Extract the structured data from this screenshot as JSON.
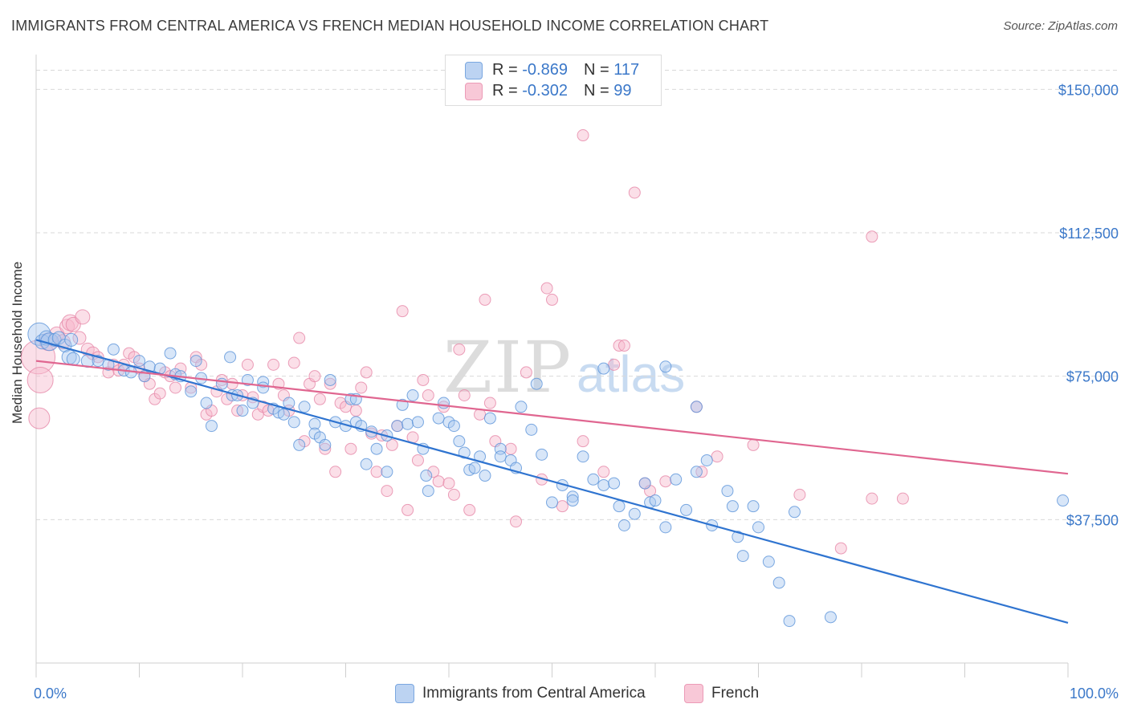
{
  "header": {
    "title": "IMMIGRANTS FROM CENTRAL AMERICA VS FRENCH MEDIAN HOUSEHOLD INCOME CORRELATION CHART",
    "source": "Source: ZipAtlas.com"
  },
  "legend": {
    "rows": [
      {
        "r_label": "R = ",
        "r_value": "-0.869",
        "n_label": "N = ",
        "n_value": "117"
      },
      {
        "r_label": "R = ",
        "r_value": "-0.302",
        "n_label": "N = ",
        "n_value": "99"
      }
    ]
  },
  "watermark": {
    "zip": "ZIP",
    "atlas": "atlas"
  },
  "colors": {
    "blue_fill": "#a9c8ef",
    "blue_stroke": "#5b93d9",
    "blue_line": "#2f74d0",
    "pink_fill": "#f6b8cb",
    "pink_stroke": "#e687a7",
    "pink_line": "#e06690",
    "tick_text": "#3b78c9",
    "grid": "#d9d9d9"
  },
  "chart_data": {
    "type": "scatter",
    "title": "IMMIGRANTS FROM CENTRAL AMERICA VS FRENCH MEDIAN HOUSEHOLD INCOME CORRELATION CHART",
    "xlabel": "",
    "ylabel": "Median Household Income",
    "xlim": [
      0,
      100
    ],
    "ylim": [
      0,
      157000
    ],
    "x_tick_labels": [
      "0.0%",
      "100.0%"
    ],
    "y_ticks": [
      37500,
      75000,
      112500,
      150000
    ],
    "y_tick_labels": [
      "$37,500",
      "$75,000",
      "$112,500",
      "$150,000"
    ],
    "grid": true,
    "legend_position": "top-center",
    "series": [
      {
        "name": "Immigrants from Central America",
        "stats": {
          "R": -0.869,
          "N": 117
        },
        "trend": {
          "x": [
            0,
            100
          ],
          "y": [
            84500,
            10500
          ]
        },
        "points": [
          [
            0.3,
            86000,
            14
          ],
          [
            0.6,
            84000,
            9
          ],
          [
            1,
            85000,
            9
          ],
          [
            1.3,
            84000,
            11
          ],
          [
            1.8,
            84500,
            8
          ],
          [
            2.2,
            85000,
            8
          ],
          [
            2.8,
            83000,
            8
          ],
          [
            3.4,
            84500,
            8
          ],
          [
            3.2,
            80000,
            9
          ],
          [
            3.6,
            79500,
            8
          ],
          [
            5,
            79000,
            8
          ],
          [
            6,
            79000,
            7
          ],
          [
            7,
            78000,
            7
          ],
          [
            7.5,
            82000,
            7
          ],
          [
            8.5,
            76500,
            7
          ],
          [
            9.2,
            76000,
            7
          ],
          [
            10,
            79000,
            7
          ],
          [
            10.5,
            75000,
            7
          ],
          [
            11,
            77500,
            7
          ],
          [
            12,
            77000,
            7
          ],
          [
            13,
            81000,
            7
          ],
          [
            13.5,
            75500,
            7
          ],
          [
            14,
            75000,
            7
          ],
          [
            15,
            71000,
            7
          ],
          [
            15.5,
            79000,
            7
          ],
          [
            16,
            74500,
            7
          ],
          [
            16.5,
            68000,
            7
          ],
          [
            17,
            62000,
            7
          ],
          [
            18,
            73000,
            7
          ],
          [
            19,
            70000,
            7
          ],
          [
            18.8,
            80000,
            7
          ],
          [
            19.5,
            70000,
            7
          ],
          [
            20,
            66000,
            7
          ],
          [
            20.5,
            74000,
            7
          ],
          [
            21,
            68000,
            7
          ],
          [
            22,
            73500,
            7
          ],
          [
            22,
            72000,
            7
          ],
          [
            23,
            66500,
            7
          ],
          [
            23.5,
            65500,
            7
          ],
          [
            24,
            65000,
            7
          ],
          [
            24.5,
            68000,
            7
          ],
          [
            25,
            63000,
            7
          ],
          [
            25.5,
            57000,
            7
          ],
          [
            26,
            67000,
            7
          ],
          [
            27,
            62500,
            7
          ],
          [
            27,
            60000,
            7
          ],
          [
            27.5,
            59000,
            7
          ],
          [
            28,
            57000,
            7
          ],
          [
            28.5,
            74000,
            7
          ],
          [
            29,
            63000,
            7
          ],
          [
            30,
            62000,
            7
          ],
          [
            30.5,
            69000,
            7
          ],
          [
            31,
            69000,
            7
          ],
          [
            31,
            63000,
            7
          ],
          [
            31.5,
            62000,
            7
          ],
          [
            32,
            52000,
            7
          ],
          [
            32.5,
            60500,
            7
          ],
          [
            33,
            56000,
            7
          ],
          [
            34,
            59500,
            7
          ],
          [
            34,
            50000,
            7
          ],
          [
            35,
            62000,
            7
          ],
          [
            35.5,
            67500,
            7
          ],
          [
            36,
            62500,
            7
          ],
          [
            36.5,
            70000,
            7
          ],
          [
            37,
            63000,
            7
          ],
          [
            37.5,
            56000,
            7
          ],
          [
            37.8,
            49000,
            7
          ],
          [
            38,
            45000,
            7
          ],
          [
            39,
            64000,
            7
          ],
          [
            39.5,
            68000,
            7
          ],
          [
            40,
            63000,
            7
          ],
          [
            40.5,
            62000,
            7
          ],
          [
            41,
            58000,
            7
          ],
          [
            41.5,
            55000,
            7
          ],
          [
            42,
            50500,
            7
          ],
          [
            42.5,
            51000,
            7
          ],
          [
            43,
            54000,
            7
          ],
          [
            43.5,
            49000,
            7
          ],
          [
            44,
            64000,
            7
          ],
          [
            45,
            56000,
            7
          ],
          [
            45,
            54000,
            7
          ],
          [
            46,
            53000,
            7
          ],
          [
            46.5,
            51000,
            7
          ],
          [
            47,
            67000,
            7
          ],
          [
            48,
            61000,
            7
          ],
          [
            48.5,
            73000,
            7
          ],
          [
            49,
            54500,
            7
          ],
          [
            50,
            42000,
            7
          ],
          [
            51,
            46500,
            7
          ],
          [
            52,
            43500,
            7
          ],
          [
            52,
            42500,
            7
          ],
          [
            53,
            54000,
            7
          ],
          [
            54,
            48000,
            7
          ],
          [
            55,
            46500,
            7
          ],
          [
            56,
            47000,
            7
          ],
          [
            56.5,
            41000,
            7
          ],
          [
            57,
            36000,
            7
          ],
          [
            58,
            39000,
            7
          ],
          [
            59,
            47000,
            7
          ],
          [
            59.5,
            42000,
            7
          ],
          [
            60,
            42500,
            7
          ],
          [
            61,
            35500,
            7
          ],
          [
            62,
            48000,
            7
          ],
          [
            63,
            40000,
            7
          ],
          [
            64,
            50000,
            7
          ],
          [
            65,
            53000,
            7
          ],
          [
            65.5,
            36000,
            7
          ],
          [
            67,
            45000,
            7
          ],
          [
            67.5,
            41000,
            7
          ],
          [
            68,
            33000,
            7
          ],
          [
            69.5,
            41000,
            7
          ],
          [
            68.5,
            28000,
            7
          ],
          [
            70,
            35500,
            7
          ],
          [
            71,
            26500,
            7
          ],
          [
            72,
            21000,
            7
          ],
          [
            73,
            11000,
            7
          ],
          [
            73.5,
            39500,
            7
          ],
          [
            77,
            12000,
            7
          ],
          [
            99.5,
            42500,
            7
          ],
          [
            55,
            77000,
            7
          ],
          [
            61,
            77500,
            7
          ],
          [
            64,
            67000,
            7
          ]
        ]
      },
      {
        "name": "French",
        "stats": {
          "R": -0.302,
          "N": 99
        },
        "trend": {
          "x": [
            0,
            100
          ],
          "y": [
            79000,
            49500
          ]
        },
        "points": [
          [
            0.2,
            80000,
            21
          ],
          [
            0.4,
            74000,
            16
          ],
          [
            0.3,
            64000,
            13
          ],
          [
            1.2,
            84000,
            11
          ],
          [
            2,
            86000,
            9
          ],
          [
            2.6,
            84000,
            9
          ],
          [
            3,
            88000,
            9
          ],
          [
            3.3,
            89000,
            10
          ],
          [
            3.6,
            88500,
            9
          ],
          [
            4.2,
            85000,
            8
          ],
          [
            4.5,
            90500,
            9
          ],
          [
            5,
            82000,
            8
          ],
          [
            5.5,
            81000,
            8
          ],
          [
            6,
            80000,
            7
          ],
          [
            7,
            76000,
            7
          ],
          [
            7.5,
            78000,
            7
          ],
          [
            8,
            76500,
            7
          ],
          [
            8.5,
            78000,
            7
          ],
          [
            9,
            81000,
            7
          ],
          [
            9.5,
            80000,
            7
          ],
          [
            10,
            77000,
            7
          ],
          [
            10.5,
            75000,
            7
          ],
          [
            11,
            73000,
            7
          ],
          [
            11.5,
            69000,
            7
          ],
          [
            12,
            70500,
            7
          ],
          [
            12.5,
            76000,
            7
          ],
          [
            13,
            75000,
            7
          ],
          [
            13.5,
            72000,
            7
          ],
          [
            14,
            77000,
            7
          ],
          [
            15,
            72000,
            7
          ],
          [
            15.5,
            80000,
            7
          ],
          [
            16,
            78000,
            7
          ],
          [
            16.5,
            65000,
            7
          ],
          [
            17,
            66000,
            7
          ],
          [
            17.5,
            71000,
            7
          ],
          [
            18,
            74000,
            7
          ],
          [
            18.5,
            69000,
            7
          ],
          [
            19,
            73000,
            7
          ],
          [
            19.5,
            66000,
            7
          ],
          [
            20,
            70000,
            7
          ],
          [
            20.5,
            78000,
            7
          ],
          [
            21,
            69500,
            7
          ],
          [
            21.5,
            65000,
            7
          ],
          [
            22,
            67000,
            7
          ],
          [
            22.5,
            66000,
            7
          ],
          [
            23,
            78000,
            7
          ],
          [
            23.5,
            73000,
            7
          ],
          [
            24,
            70000,
            7
          ],
          [
            24.5,
            66000,
            7
          ],
          [
            25,
            78500,
            7
          ],
          [
            25.5,
            85000,
            7
          ],
          [
            26,
            58000,
            7
          ],
          [
            26.5,
            73000,
            7
          ],
          [
            27,
            75000,
            7
          ],
          [
            27.5,
            69000,
            7
          ],
          [
            28,
            56000,
            7
          ],
          [
            28.5,
            73000,
            7
          ],
          [
            29,
            50000,
            7
          ],
          [
            29.5,
            68000,
            7
          ],
          [
            30,
            67000,
            7
          ],
          [
            30.5,
            56000,
            7
          ],
          [
            31,
            66000,
            7
          ],
          [
            31.5,
            72000,
            7
          ],
          [
            32,
            76000,
            7
          ],
          [
            32.5,
            60000,
            7
          ],
          [
            33,
            50000,
            7
          ],
          [
            33.5,
            59500,
            7
          ],
          [
            34,
            45000,
            7
          ],
          [
            34.5,
            57000,
            7
          ],
          [
            35,
            62000,
            7
          ],
          [
            35.5,
            92000,
            7
          ],
          [
            36,
            40000,
            7
          ],
          [
            36.5,
            59000,
            7
          ],
          [
            37,
            53000,
            7
          ],
          [
            37.5,
            74000,
            7
          ],
          [
            38,
            70000,
            7
          ],
          [
            38.5,
            50000,
            7
          ],
          [
            39,
            47500,
            7
          ],
          [
            39.5,
            67000,
            7
          ],
          [
            40,
            47000,
            7
          ],
          [
            40.5,
            44000,
            7
          ],
          [
            41,
            82000,
            7
          ],
          [
            41.5,
            70000,
            7
          ],
          [
            42,
            40000,
            7
          ],
          [
            43,
            65000,
            7
          ],
          [
            43.5,
            95000,
            7
          ],
          [
            44,
            68000,
            7
          ],
          [
            44.5,
            58000,
            7
          ],
          [
            46,
            56000,
            7
          ],
          [
            46.5,
            37000,
            7
          ],
          [
            47.5,
            76000,
            7
          ],
          [
            49,
            48000,
            7
          ],
          [
            49.5,
            98000,
            7
          ],
          [
            50,
            95000,
            7
          ],
          [
            51,
            41000,
            7
          ],
          [
            53,
            138000,
            7
          ],
          [
            53,
            58000,
            7
          ],
          [
            55,
            50000,
            7
          ],
          [
            56,
            78000,
            7
          ],
          [
            56.5,
            83000,
            7
          ],
          [
            57,
            83000,
            7
          ],
          [
            58,
            123000,
            7
          ],
          [
            59,
            47000,
            7
          ],
          [
            59.5,
            45000,
            7
          ],
          [
            61,
            47500,
            7
          ],
          [
            64,
            67000,
            7
          ],
          [
            64.5,
            50000,
            7
          ],
          [
            66,
            54000,
            7
          ],
          [
            69.5,
            57000,
            7
          ],
          [
            74,
            44000,
            7
          ],
          [
            81,
            111500,
            7
          ],
          [
            78,
            30000,
            7
          ],
          [
            81,
            43000,
            7
          ],
          [
            84,
            43000,
            7
          ]
        ]
      }
    ]
  },
  "bottom_legend": {
    "items": [
      {
        "label": "Immigrants from Central America"
      },
      {
        "label": "French"
      }
    ]
  }
}
